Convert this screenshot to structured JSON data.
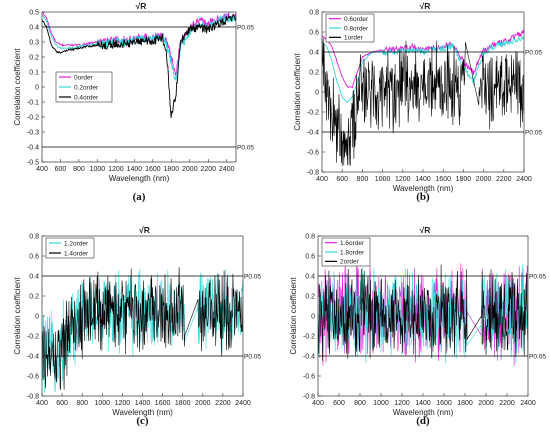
{
  "chart_data": [
    {
      "type": "line",
      "panel_label": "(a)",
      "title": "√R",
      "xlabel": "Wavelength (nm)",
      "ylabel": "Correlation coefficient",
      "xlim": [
        400,
        2500
      ],
      "ylim": [
        -0.5,
        0.5
      ],
      "xticks": [
        400,
        600,
        800,
        1000,
        1200,
        1400,
        1600,
        1800,
        2000,
        2200,
        2400
      ],
      "yticks": [
        -0.5,
        -0.4,
        -0.3,
        -0.2,
        -0.1,
        0,
        0.1,
        0.2,
        0.3,
        0.4,
        0.5
      ],
      "ytick_labels": [
        "-0.5",
        "-0.4",
        "-0.3",
        "-0.2",
        "-0.1",
        "0",
        "0.1",
        "0.2",
        "0.3",
        "0.4",
        "0.5"
      ],
      "thresholds": [
        {
          "y": 0.4,
          "label": "P0.05"
        },
        {
          "y": -0.4,
          "label": "P0.05"
        }
      ],
      "legend_position": "center-left",
      "series": [
        {
          "name": "0order",
          "color": "#e01ed8",
          "x": [
            400,
            450,
            500,
            550,
            600,
            650,
            700,
            750,
            800,
            900,
            1000,
            1100,
            1200,
            1300,
            1400,
            1500,
            1600,
            1700,
            1750,
            1800,
            1850,
            1900,
            2000,
            2100,
            2200,
            2300,
            2400,
            2500
          ],
          "y": [
            0.5,
            0.46,
            0.36,
            0.3,
            0.28,
            0.28,
            0.28,
            0.28,
            0.28,
            0.29,
            0.3,
            0.3,
            0.31,
            0.31,
            0.32,
            0.33,
            0.32,
            0.35,
            0.3,
            0.2,
            0.08,
            0.3,
            0.4,
            0.44,
            0.42,
            0.45,
            0.47,
            0.48
          ]
        },
        {
          "name": "0.2order",
          "color": "#36d8d8",
          "x": [
            400,
            450,
            500,
            550,
            600,
            650,
            700,
            750,
            800,
            900,
            1000,
            1100,
            1200,
            1300,
            1400,
            1500,
            1600,
            1700,
            1750,
            1800,
            1850,
            1900,
            2000,
            2100,
            2200,
            2300,
            2400,
            2500
          ],
          "y": [
            0.48,
            0.44,
            0.34,
            0.28,
            0.26,
            0.26,
            0.26,
            0.26,
            0.27,
            0.28,
            0.29,
            0.29,
            0.3,
            0.3,
            0.31,
            0.32,
            0.31,
            0.34,
            0.28,
            0.16,
            0.04,
            0.26,
            0.36,
            0.42,
            0.4,
            0.44,
            0.46,
            0.47
          ]
        },
        {
          "name": "0.4order",
          "color": "#000000",
          "x": [
            400,
            450,
            500,
            550,
            600,
            650,
            700,
            750,
            800,
            900,
            1000,
            1100,
            1200,
            1300,
            1400,
            1500,
            1600,
            1700,
            1750,
            1800,
            1850,
            1900,
            2000,
            2100,
            2200,
            2300,
            2400,
            2500
          ],
          "y": [
            0.45,
            0.4,
            0.28,
            0.24,
            0.23,
            0.24,
            0.25,
            0.25,
            0.26,
            0.27,
            0.28,
            0.28,
            0.29,
            0.29,
            0.3,
            0.31,
            0.3,
            0.33,
            0.22,
            -0.2,
            -0.05,
            0.3,
            0.38,
            0.4,
            0.38,
            0.42,
            0.45,
            0.46
          ]
        }
      ]
    },
    {
      "type": "line",
      "panel_label": "(b)",
      "title": "√R",
      "xlabel": "Wavelength (nm)",
      "ylabel": "Correlation coefficient",
      "xlim": [
        400,
        2400
      ],
      "ylim": [
        -0.8,
        0.8
      ],
      "xticks": [
        400,
        600,
        800,
        1000,
        1200,
        1400,
        1600,
        1800,
        2000,
        2200,
        2400
      ],
      "yticks": [
        -0.8,
        -0.6,
        -0.4,
        -0.2,
        0,
        0.2,
        0.4,
        0.6,
        0.8
      ],
      "ytick_labels": [
        "-0.8",
        "-0.6",
        "-0.4",
        "-0.2",
        "0",
        "0.2",
        "0.4",
        "0.6",
        "0.8"
      ],
      "thresholds": [
        {
          "y": 0.4,
          "label": "P0.05"
        },
        {
          "y": -0.4,
          "label": "P0.05"
        }
      ],
      "legend_position": "top-left",
      "series": [
        {
          "name": "0.6order",
          "color": "#e01ed8",
          "x": [
            400,
            450,
            500,
            550,
            600,
            650,
            700,
            750,
            800,
            900,
            1000,
            1100,
            1200,
            1300,
            1400,
            1500,
            1600,
            1700,
            1800,
            1900,
            2000,
            2100,
            2200,
            2300,
            2400
          ],
          "y": [
            0.56,
            0.52,
            0.45,
            0.3,
            0.15,
            0.05,
            0.05,
            0.2,
            0.35,
            0.4,
            0.42,
            0.42,
            0.44,
            0.45,
            0.42,
            0.44,
            0.46,
            0.48,
            0.3,
            0.2,
            0.42,
            0.48,
            0.5,
            0.55,
            0.6
          ]
        },
        {
          "name": "0.8order",
          "color": "#36d8d8",
          "x": [
            400,
            450,
            500,
            550,
            600,
            650,
            700,
            750,
            800,
            900,
            1000,
            1100,
            1200,
            1300,
            1400,
            1500,
            1600,
            1700,
            1800,
            1900,
            2000,
            2100,
            2200,
            2300,
            2400
          ],
          "y": [
            0.5,
            0.45,
            0.3,
            0.1,
            -0.05,
            -0.1,
            -0.05,
            0.1,
            0.3,
            0.4,
            0.4,
            0.4,
            0.42,
            0.42,
            0.4,
            0.42,
            0.44,
            0.46,
            0.25,
            0.1,
            0.4,
            0.45,
            0.48,
            0.52,
            0.55
          ]
        },
        {
          "name": "1order",
          "color": "#000000",
          "noise": 0.3,
          "x": [
            400,
            450,
            500,
            550,
            600,
            650,
            700,
            750,
            800,
            900,
            1000,
            1100,
            1200,
            1300,
            1400,
            1500,
            1600,
            1700,
            1800,
            1900,
            2000,
            2100,
            2200,
            2300,
            2400
          ],
          "y": [
            0.3,
            0.1,
            -0.2,
            -0.35,
            -0.45,
            -0.4,
            -0.3,
            -0.1,
            0.05,
            0.05,
            0.05,
            0.05,
            0.05,
            0.05,
            0.05,
            0.05,
            0.05,
            0.05,
            0.05,
            0.05,
            0.05,
            0.05,
            0.05,
            0.05,
            0.05
          ]
        }
      ]
    },
    {
      "type": "line",
      "panel_label": "(c)",
      "title": "√R",
      "xlabel": "Wavelength (nm)",
      "ylabel": "Correlation coefficient",
      "xlim": [
        400,
        2400
      ],
      "ylim": [
        -0.8,
        0.8
      ],
      "xticks": [
        400,
        600,
        800,
        1000,
        1200,
        1400,
        1600,
        1800,
        2000,
        2200,
        2400
      ],
      "yticks": [
        -0.8,
        -0.6,
        -0.4,
        -0.2,
        0,
        0.2,
        0.4,
        0.6,
        0.8
      ],
      "ytick_labels": [
        "-0.8",
        "-0.6",
        "-0.4",
        "-0.2",
        "0",
        "0.2",
        "0.4",
        "0.6",
        "0.8"
      ],
      "thresholds": [
        {
          "y": 0.4,
          "label": "P0.05"
        },
        {
          "y": -0.4,
          "label": "P0.05"
        }
      ],
      "legend_position": "top-left",
      "series": [
        {
          "name": "1.2order",
          "color": "#36d8d8",
          "noise": 0.3,
          "x": [
            400,
            500,
            600,
            700,
            800,
            900,
            1000,
            1200,
            1400,
            1600,
            1800,
            1900,
            2000,
            2200,
            2400
          ],
          "y": [
            -0.35,
            -0.4,
            -0.3,
            -0.1,
            0.0,
            0.05,
            0.05,
            0.05,
            0.05,
            0.05,
            0.05,
            0.05,
            0.05,
            0.05,
            0.05
          ]
        },
        {
          "name": "1.4order",
          "color": "#000000",
          "noise": 0.3,
          "x": [
            400,
            500,
            600,
            700,
            800,
            900,
            1000,
            1200,
            1400,
            1600,
            1800,
            1900,
            2000,
            2200,
            2400
          ],
          "y": [
            -0.4,
            -0.45,
            -0.35,
            -0.12,
            0.0,
            0.05,
            0.05,
            0.05,
            0.05,
            0.05,
            0.05,
            0.05,
            0.05,
            0.05,
            0.05
          ]
        }
      ]
    },
    {
      "type": "line",
      "panel_label": "(d)",
      "title": "√R",
      "xlabel": "Wavelength (nm)",
      "ylabel": "Correlation coefficient",
      "xlim": [
        400,
        2400
      ],
      "ylim": [
        -0.8,
        0.8
      ],
      "xticks": [
        400,
        600,
        800,
        1000,
        1200,
        1400,
        1600,
        1800,
        2000,
        2200,
        2400
      ],
      "yticks": [
        -0.8,
        -0.6,
        -0.4,
        -0.2,
        0,
        0.2,
        0.4,
        0.6,
        0.8
      ],
      "ytick_labels": [
        "-0.8",
        "-0.6",
        "-0.4",
        "-0.2",
        "0",
        "0.2",
        "0.4",
        "0.6",
        "0.8"
      ],
      "thresholds": [
        {
          "y": 0.4,
          "label": "P0.05"
        },
        {
          "y": -0.4,
          "label": "P0.05"
        }
      ],
      "legend_position": "top-left",
      "series": [
        {
          "name": "1.6order",
          "color": "#e01ed8",
          "noise": 0.34,
          "x": [
            400,
            600,
            800,
            1000,
            1200,
            1400,
            1600,
            1800,
            2000,
            2200,
            2400
          ],
          "y": [
            0.0,
            0.02,
            0.02,
            0.02,
            0.02,
            0.02,
            0.02,
            0.02,
            0.02,
            0.02,
            0.02
          ]
        },
        {
          "name": "1.8order",
          "color": "#36d8d8",
          "noise": 0.32,
          "x": [
            400,
            600,
            800,
            1000,
            1200,
            1400,
            1600,
            1800,
            2000,
            2200,
            2400
          ],
          "y": [
            0.0,
            0.02,
            0.02,
            0.02,
            0.02,
            0.02,
            0.02,
            0.02,
            0.02,
            0.02,
            0.02
          ]
        },
        {
          "name": "2order",
          "color": "#000000",
          "noise": 0.32,
          "x": [
            400,
            600,
            800,
            1000,
            1200,
            1400,
            1600,
            1800,
            2000,
            2200,
            2400
          ],
          "y": [
            0.0,
            0.02,
            0.02,
            0.02,
            0.02,
            0.02,
            0.02,
            0.02,
            0.02,
            0.02,
            0.02
          ]
        }
      ]
    }
  ]
}
